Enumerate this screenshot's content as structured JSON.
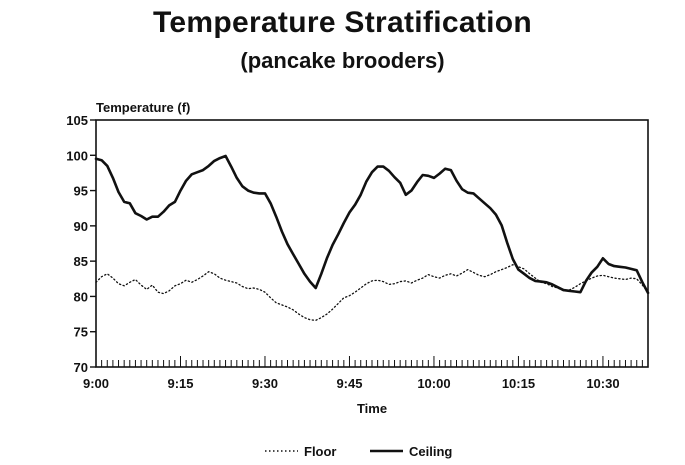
{
  "chart_data": {
    "type": "line",
    "title": "Temperature Stratification",
    "subtitle": "(pancake brooders)",
    "ylabel": "Temperature (f)",
    "xlabel": "Time",
    "ylim": [
      70,
      105
    ],
    "yticks": [
      70,
      75,
      80,
      85,
      90,
      95,
      100,
      105
    ],
    "xlim": [
      0,
      98
    ],
    "xtick_labels": [
      {
        "label": "9:00",
        "minute": 0
      },
      {
        "label": "9:15",
        "minute": 15
      },
      {
        "label": "9:30",
        "minute": 30
      },
      {
        "label": "9:45",
        "minute": 45
      },
      {
        "label": "10:00",
        "minute": 60
      },
      {
        "label": "10:15",
        "minute": 75
      },
      {
        "label": "10:30",
        "minute": 90
      }
    ],
    "legend": [
      {
        "name": "Floor",
        "style": "dotted"
      },
      {
        "name": "Ceiling",
        "style": "solid"
      }
    ],
    "legend_position": "bottom",
    "series": [
      {
        "name": "Ceiling",
        "style": "solid",
        "x": [
          0,
          1,
          2,
          3,
          4,
          5,
          6,
          7,
          8,
          9,
          10,
          11,
          12,
          13,
          14,
          15,
          16,
          17,
          18,
          19,
          20,
          21,
          22,
          23,
          24,
          25,
          26,
          27,
          28,
          29,
          30,
          31,
          32,
          33,
          34,
          35,
          36,
          37,
          38,
          39,
          40,
          41,
          42,
          43,
          44,
          45,
          46,
          47,
          48,
          49,
          50,
          51,
          52,
          53,
          54,
          55,
          56,
          57,
          58,
          59,
          60,
          61,
          62,
          63,
          64,
          65,
          66,
          67,
          68,
          69,
          70,
          71,
          72,
          73,
          74,
          75,
          76,
          77,
          78,
          79,
          80,
          81,
          82,
          83,
          84,
          85,
          86,
          87,
          88,
          89,
          90,
          91,
          92,
          93,
          94,
          95,
          96,
          97,
          98
        ],
        "values": [
          99.5,
          99.3,
          98.5,
          96.8,
          94.8,
          93.4,
          93.2,
          91.8,
          91.4,
          90.9,
          91.3,
          91.3,
          92.0,
          92.9,
          93.4,
          95.0,
          96.4,
          97.3,
          97.6,
          97.9,
          98.5,
          99.2,
          99.6,
          99.9,
          98.4,
          96.8,
          95.6,
          95.0,
          94.7,
          94.6,
          94.6,
          93.2,
          91.3,
          89.2,
          87.4,
          86.0,
          84.6,
          83.2,
          82.1,
          81.2,
          83.2,
          85.4,
          87.3,
          88.8,
          90.4,
          91.9,
          93.0,
          94.4,
          96.3,
          97.6,
          98.4,
          98.4,
          97.8,
          96.9,
          96.1,
          94.4,
          95.0,
          96.2,
          97.2,
          97.1,
          96.8,
          97.4,
          98.1,
          97.9,
          96.4,
          95.2,
          94.7,
          94.6,
          93.9,
          93.2,
          92.5,
          91.6,
          90.1,
          87.6,
          85.3,
          83.8,
          83.2,
          82.6,
          82.2,
          82.1,
          82.0,
          81.7,
          81.3,
          80.9,
          80.8,
          80.7,
          80.6,
          82.2,
          83.4,
          84.2,
          85.4,
          84.6,
          84.3,
          84.2,
          84.1,
          83.9,
          83.7,
          82.0,
          80.5
        ]
      },
      {
        "name": "Floor",
        "style": "dotted",
        "x": [
          0,
          1,
          2,
          3,
          4,
          5,
          6,
          7,
          8,
          9,
          10,
          11,
          12,
          13,
          14,
          15,
          16,
          17,
          18,
          19,
          20,
          21,
          22,
          23,
          24,
          25,
          26,
          27,
          28,
          29,
          30,
          31,
          32,
          33,
          34,
          35,
          36,
          37,
          38,
          39,
          40,
          41,
          42,
          43,
          44,
          45,
          46,
          47,
          48,
          49,
          50,
          51,
          52,
          53,
          54,
          55,
          56,
          57,
          58,
          59,
          60,
          61,
          62,
          63,
          64,
          65,
          66,
          67,
          68,
          69,
          70,
          71,
          72,
          73,
          74,
          75,
          76,
          77,
          78,
          79,
          80,
          81,
          82,
          83,
          84,
          85,
          86,
          87,
          88,
          89,
          90,
          91,
          92,
          93,
          94,
          95,
          96,
          97,
          98
        ],
        "values": [
          82.0,
          82.8,
          83.2,
          82.6,
          81.8,
          81.5,
          82.0,
          82.4,
          81.6,
          81.0,
          81.6,
          80.6,
          80.4,
          80.8,
          81.5,
          81.8,
          82.3,
          82.0,
          82.4,
          82.9,
          83.5,
          83.2,
          82.6,
          82.3,
          82.1,
          81.9,
          81.4,
          81.1,
          81.2,
          81.0,
          80.6,
          79.8,
          79.1,
          78.8,
          78.5,
          78.1,
          77.5,
          77.0,
          76.7,
          76.6,
          77.0,
          77.5,
          78.2,
          79.0,
          79.8,
          80.1,
          80.6,
          81.2,
          81.8,
          82.2,
          82.3,
          82.1,
          81.7,
          81.8,
          82.1,
          82.2,
          81.9,
          82.3,
          82.6,
          83.1,
          82.8,
          82.6,
          83.0,
          83.2,
          82.9,
          83.3,
          83.8,
          83.4,
          83.0,
          82.8,
          83.1,
          83.5,
          83.8,
          84.1,
          84.5,
          84.2,
          83.9,
          83.2,
          82.6,
          82.0,
          81.8,
          81.4,
          81.2,
          80.8,
          80.9,
          81.3,
          81.8,
          82.2,
          82.6,
          82.9,
          83.0,
          82.8,
          82.6,
          82.5,
          82.4,
          82.6,
          82.5,
          81.6,
          80.6
        ]
      }
    ]
  }
}
